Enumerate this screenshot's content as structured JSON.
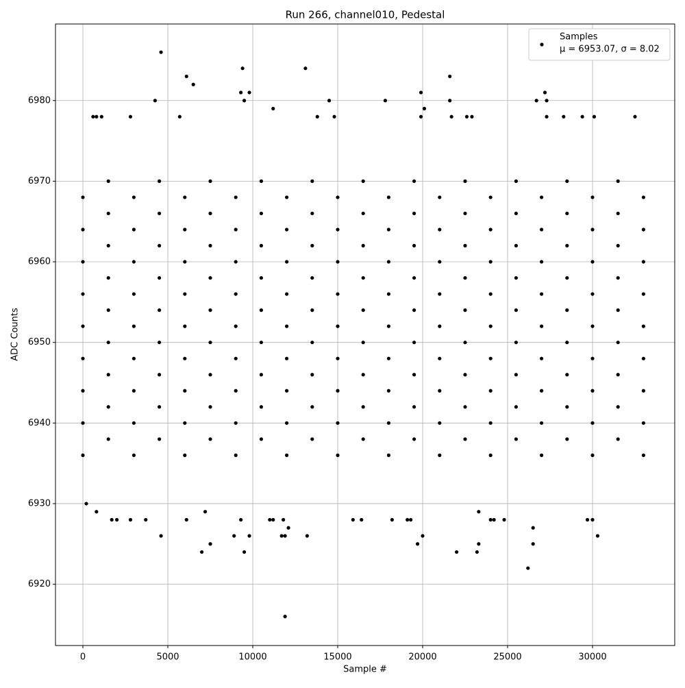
{
  "chart_data": {
    "type": "scatter",
    "title": "Run 266, channel010, Pedestal",
    "xlabel": "Sample #",
    "ylabel": "ADC Counts",
    "xlim": [
      -1613,
      34839
    ],
    "ylim": [
      6912.4,
      6989.5
    ],
    "xticks": [
      0,
      5000,
      10000,
      15000,
      20000,
      25000,
      30000
    ],
    "yticks": [
      6920,
      6930,
      6940,
      6950,
      6960,
      6970,
      6980
    ],
    "grid": true,
    "legend_loc": "upper right",
    "legend_note": "μ = 6953.07, σ = 8.02",
    "series": [
      {
        "name": "Samples",
        "color": "#000000",
        "x": [
          4600,
          6100,
          6500,
          9400,
          13100,
          21600,
          4250,
          9500,
          14500,
          17800,
          21600,
          26700,
          27300,
          9300,
          9800,
          19900,
          27200,
          11200,
          20100,
          600,
          800,
          1100,
          2800,
          5700,
          13800,
          14800,
          19900,
          21700,
          22600,
          22900,
          27300,
          28300,
          29400,
          30100,
          32500,
          11900,
          26200,
          7000,
          9500,
          22000,
          23200,
          7500,
          19700,
          23300,
          26500,
          4600,
          8900,
          9800,
          11700,
          11900,
          13200,
          20000,
          30300,
          12100,
          26500,
          1700,
          2000,
          2800,
          3700,
          6100,
          9300,
          11000,
          11200,
          11800,
          15900,
          16400,
          18200,
          19100,
          19300,
          24000,
          24200,
          24800,
          29700,
          30000,
          200,
          800,
          7200,
          23300,
          0,
          0,
          0,
          0,
          0,
          0,
          0,
          0,
          0,
          1500,
          1500,
          1500,
          1500,
          1500,
          1500,
          1500,
          1500,
          1500,
          3000,
          3000,
          3000,
          3000,
          3000,
          3000,
          3000,
          3000,
          3000,
          4500,
          4500,
          4500,
          4500,
          4500,
          4500,
          4500,
          4500,
          4500,
          6000,
          6000,
          6000,
          6000,
          6000,
          6000,
          6000,
          6000,
          6000,
          7500,
          7500,
          7500,
          7500,
          7500,
          7500,
          7500,
          7500,
          7500,
          9000,
          9000,
          9000,
          9000,
          9000,
          9000,
          9000,
          9000,
          9000,
          10500,
          10500,
          10500,
          10500,
          10500,
          10500,
          10500,
          10500,
          10500,
          12000,
          12000,
          12000,
          12000,
          12000,
          12000,
          12000,
          12000,
          12000,
          13500,
          13500,
          13500,
          13500,
          13500,
          13500,
          13500,
          13500,
          13500,
          15000,
          15000,
          15000,
          15000,
          15000,
          15000,
          15000,
          15000,
          15000,
          16500,
          16500,
          16500,
          16500,
          16500,
          16500,
          16500,
          16500,
          16500,
          18000,
          18000,
          18000,
          18000,
          18000,
          18000,
          18000,
          18000,
          18000,
          19500,
          19500,
          19500,
          19500,
          19500,
          19500,
          19500,
          19500,
          19500,
          21000,
          21000,
          21000,
          21000,
          21000,
          21000,
          21000,
          21000,
          21000,
          22500,
          22500,
          22500,
          22500,
          22500,
          22500,
          22500,
          22500,
          22500,
          24000,
          24000,
          24000,
          24000,
          24000,
          24000,
          24000,
          24000,
          24000,
          25500,
          25500,
          25500,
          25500,
          25500,
          25500,
          25500,
          25500,
          25500,
          27000,
          27000,
          27000,
          27000,
          27000,
          27000,
          27000,
          27000,
          27000,
          28500,
          28500,
          28500,
          28500,
          28500,
          28500,
          28500,
          28500,
          28500,
          30000,
          30000,
          30000,
          30000,
          30000,
          30000,
          30000,
          30000,
          30000,
          31500,
          31500,
          31500,
          31500,
          31500,
          31500,
          31500,
          31500,
          31500,
          33000,
          33000,
          33000,
          33000,
          33000,
          33000,
          33000,
          33000,
          33000
        ],
        "values": [
          6986,
          6983,
          6982,
          6984,
          6984,
          6983,
          6980,
          6980,
          6980,
          6980,
          6980,
          6980,
          6980,
          6981,
          6981,
          6981,
          6981,
          6979,
          6979,
          6978,
          6978,
          6978,
          6978,
          6978,
          6978,
          6978,
          6978,
          6978,
          6978,
          6978,
          6978,
          6978,
          6978,
          6978,
          6978,
          6916,
          6922,
          6924,
          6924,
          6924,
          6924,
          6925,
          6925,
          6925,
          6925,
          6926,
          6926,
          6926,
          6926,
          6926,
          6926,
          6926,
          6926,
          6927,
          6927,
          6928,
          6928,
          6928,
          6928,
          6928,
          6928,
          6928,
          6928,
          6928,
          6928,
          6928,
          6928,
          6928,
          6928,
          6928,
          6928,
          6928,
          6928,
          6928,
          6930,
          6929,
          6929,
          6929,
          6936,
          6940,
          6944,
          6948,
          6952,
          6956,
          6960,
          6964,
          6968,
          6938,
          6942,
          6946,
          6950,
          6954,
          6958,
          6962,
          6966,
          6970,
          6936,
          6940,
          6944,
          6948,
          6952,
          6956,
          6960,
          6964,
          6968,
          6938,
          6942,
          6946,
          6950,
          6954,
          6958,
          6962,
          6966,
          6970,
          6936,
          6940,
          6944,
          6948,
          6952,
          6956,
          6960,
          6964,
          6968,
          6938,
          6942,
          6946,
          6950,
          6954,
          6958,
          6962,
          6966,
          6970,
          6936,
          6940,
          6944,
          6948,
          6952,
          6956,
          6960,
          6964,
          6968,
          6938,
          6942,
          6946,
          6950,
          6954,
          6958,
          6962,
          6966,
          6970,
          6936,
          6940,
          6944,
          6948,
          6952,
          6956,
          6960,
          6964,
          6968,
          6938,
          6942,
          6946,
          6950,
          6954,
          6958,
          6962,
          6966,
          6970,
          6936,
          6940,
          6944,
          6948,
          6952,
          6956,
          6960,
          6964,
          6968,
          6938,
          6942,
          6946,
          6950,
          6954,
          6958,
          6962,
          6966,
          6970,
          6936,
          6940,
          6944,
          6948,
          6952,
          6956,
          6960,
          6964,
          6968,
          6938,
          6942,
          6946,
          6950,
          6954,
          6958,
          6962,
          6966,
          6970,
          6936,
          6940,
          6944,
          6948,
          6952,
          6956,
          6960,
          6964,
          6968,
          6938,
          6942,
          6946,
          6950,
          6954,
          6958,
          6962,
          6966,
          6970,
          6936,
          6940,
          6944,
          6948,
          6952,
          6956,
          6960,
          6964,
          6968,
          6938,
          6942,
          6946,
          6950,
          6954,
          6958,
          6962,
          6966,
          6970,
          6936,
          6940,
          6944,
          6948,
          6952,
          6956,
          6960,
          6964,
          6968,
          6938,
          6942,
          6946,
          6950,
          6954,
          6958,
          6962,
          6966,
          6970,
          6936,
          6940,
          6944,
          6948,
          6952,
          6956,
          6960,
          6964,
          6968,
          6938,
          6942,
          6946,
          6950,
          6954,
          6958,
          6962,
          6966,
          6970,
          6936,
          6940,
          6944,
          6948,
          6952,
          6956,
          6960,
          6964,
          6968
        ]
      }
    ]
  }
}
